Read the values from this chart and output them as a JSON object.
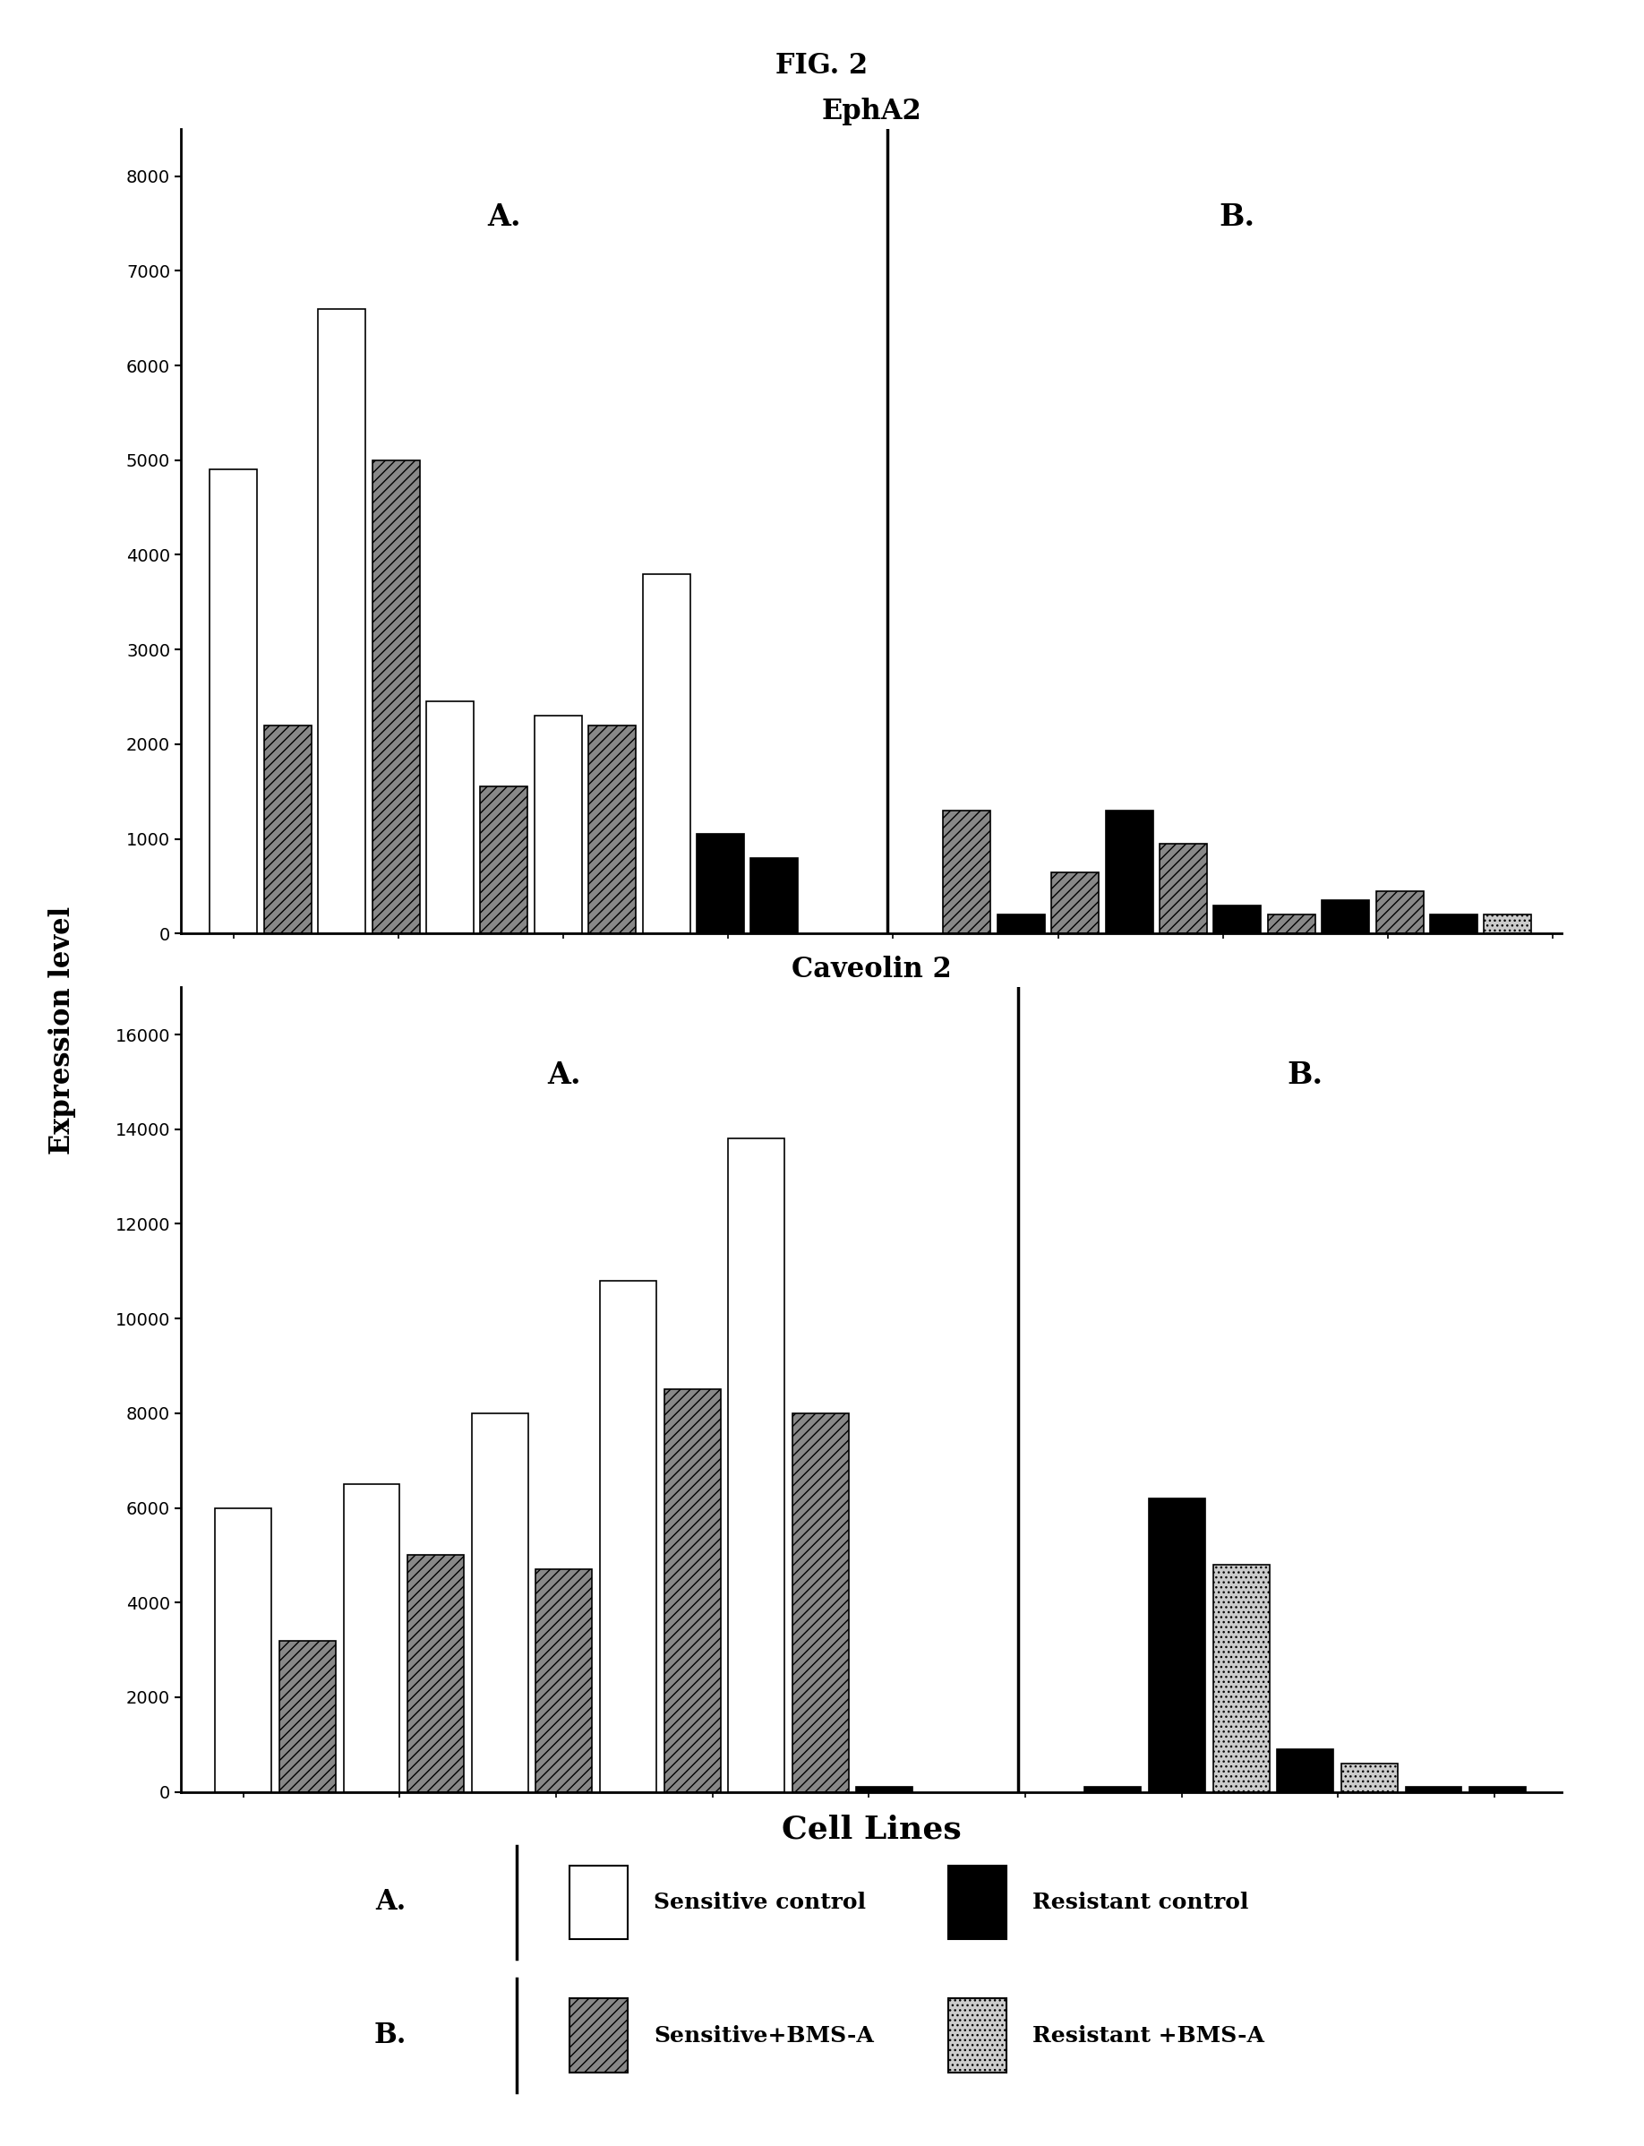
{
  "fig_title": "FIG. 2",
  "subplot1_title": "EphA2",
  "subplot2_title": "Caveolin 2",
  "xlabel": "Cell Lines",
  "ylabel": "Expression level",
  "epha2_ylim": [
    0,
    8500
  ],
  "epha2_yticks": [
    0,
    1000,
    2000,
    3000,
    4000,
    5000,
    6000,
    7000,
    8000
  ],
  "cav2_ylim": [
    0,
    17000
  ],
  "cav2_yticks": [
    0,
    2000,
    4000,
    6000,
    8000,
    10000,
    12000,
    14000,
    16000
  ],
  "epha2_A": [
    {
      "type": "white",
      "val": 4900
    },
    {
      "type": "gray",
      "val": 2200
    },
    {
      "type": "white",
      "val": 6600
    },
    {
      "type": "gray",
      "val": 5000
    },
    {
      "type": "white",
      "val": 2450
    },
    {
      "type": "gray",
      "val": 1550
    },
    {
      "type": "white",
      "val": 2300
    },
    {
      "type": "gray",
      "val": 2200
    },
    {
      "type": "white",
      "val": 3800
    },
    {
      "type": "black",
      "val": 1050
    },
    {
      "type": "black",
      "val": 800
    }
  ],
  "epha2_B": [
    {
      "type": "gray",
      "val": 1300
    },
    {
      "type": "black",
      "val": 200
    },
    {
      "type": "gray",
      "val": 650
    },
    {
      "type": "black",
      "val": 1300
    },
    {
      "type": "gray",
      "val": 950
    },
    {
      "type": "black",
      "val": 300
    },
    {
      "type": "gray",
      "val": 200
    },
    {
      "type": "black",
      "val": 350
    },
    {
      "type": "gray",
      "val": 450
    },
    {
      "type": "black",
      "val": 200
    },
    {
      "type": "lgray",
      "val": 200
    }
  ],
  "cav2_A": [
    {
      "type": "white",
      "val": 6000
    },
    {
      "type": "gray",
      "val": 3200
    },
    {
      "type": "white",
      "val": 6500
    },
    {
      "type": "gray",
      "val": 5000
    },
    {
      "type": "white",
      "val": 8000
    },
    {
      "type": "gray",
      "val": 4700
    },
    {
      "type": "white",
      "val": 10800
    },
    {
      "type": "gray",
      "val": 8500
    },
    {
      "type": "white",
      "val": 13800
    },
    {
      "type": "gray",
      "val": 8000
    },
    {
      "type": "black",
      "val": 100
    }
  ],
  "cav2_B": [
    {
      "type": "black",
      "val": 100
    },
    {
      "type": "black",
      "val": 6200
    },
    {
      "type": "lgray",
      "val": 4800
    },
    {
      "type": "black",
      "val": 900
    },
    {
      "type": "lgray",
      "val": 600
    },
    {
      "type": "black",
      "val": 100
    },
    {
      "type": "black",
      "val": 100
    }
  ],
  "legend_items": [
    {
      "label": "Sensitive control",
      "color": "white",
      "hatch": ""
    },
    {
      "label": "Sensitive+BMS-A",
      "color": "#888888",
      "hatch": "///"
    },
    {
      "label": "Resistant control",
      "color": "black",
      "hatch": ""
    },
    {
      "label": "Resistant +BMS-A",
      "color": "#cccccc",
      "hatch": "..."
    }
  ]
}
